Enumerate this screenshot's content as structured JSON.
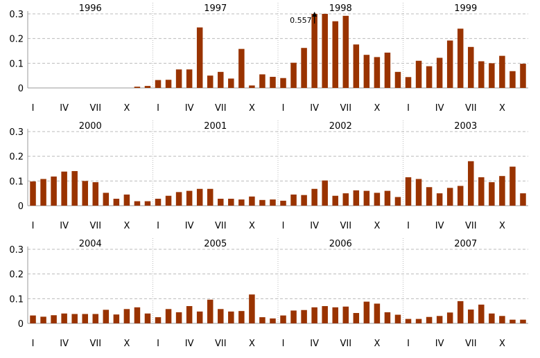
{
  "chart_data": {
    "type": "bar",
    "title": "",
    "xlabel": "",
    "ylabel": "",
    "ylim": [
      0,
      0.3
    ],
    "y_ticks": [
      "0",
      "0.1",
      "0.2",
      "0.3"
    ],
    "month_tick_labels": [
      "I",
      "IV",
      "VII",
      "X"
    ],
    "grid": "horizontal dashed at y ticks; vertical dotted between years",
    "bar_color": "#993300",
    "annotation": {
      "year": "1998",
      "month": 4,
      "text": "0.557",
      "value": 0.557
    },
    "rows": [
      {
        "years": [
          {
            "label": "1996",
            "values": [
              0,
              0,
              0,
              0,
              0,
              0,
              0,
              0,
              0,
              0,
              0.005,
              0.008
            ]
          },
          {
            "label": "1997",
            "values": [
              0.032,
              0.033,
              0.075,
              0.075,
              0.245,
              0.05,
              0.065,
              0.038,
              0.158,
              0.01,
              0.055,
              0.045
            ]
          },
          {
            "label": "1998",
            "values": [
              0.04,
              0.102,
              0.162,
              0.557,
              0.308,
              0.27,
              0.292,
              0.176,
              0.134,
              0.125,
              0.143,
              0.065
            ]
          },
          {
            "label": "1999",
            "values": [
              0.044,
              0.11,
              0.088,
              0.122,
              0.192,
              0.24,
              0.166,
              0.108,
              0.1,
              0.13,
              0.068,
              0.098
            ]
          }
        ]
      },
      {
        "years": [
          {
            "label": "2000",
            "values": [
              0.098,
              0.108,
              0.118,
              0.138,
              0.14,
              0.1,
              0.095,
              0.052,
              0.028,
              0.045,
              0.018,
              0.018
            ]
          },
          {
            "label": "2001",
            "values": [
              0.028,
              0.04,
              0.055,
              0.06,
              0.068,
              0.068,
              0.028,
              0.028,
              0.025,
              0.037,
              0.023,
              0.025
            ]
          },
          {
            "label": "2002",
            "values": [
              0.02,
              0.045,
              0.043,
              0.068,
              0.102,
              0.04,
              0.05,
              0.062,
              0.06,
              0.052,
              0.06,
              0.035
            ]
          },
          {
            "label": "2003",
            "values": [
              0.115,
              0.108,
              0.075,
              0.05,
              0.072,
              0.08,
              0.18,
              0.115,
              0.095,
              0.12,
              0.158,
              0.05
            ]
          }
        ]
      },
      {
        "years": [
          {
            "label": "2004",
            "values": [
              0.032,
              0.027,
              0.033,
              0.04,
              0.038,
              0.038,
              0.038,
              0.055,
              0.036,
              0.058,
              0.065,
              0.04
            ]
          },
          {
            "label": "2005",
            "values": [
              0.025,
              0.058,
              0.045,
              0.07,
              0.048,
              0.096,
              0.058,
              0.048,
              0.05,
              0.117,
              0.025,
              0.02
            ]
          },
          {
            "label": "2006",
            "values": [
              0.032,
              0.052,
              0.054,
              0.065,
              0.07,
              0.065,
              0.068,
              0.042,
              0.088,
              0.08,
              0.045,
              0.035
            ]
          },
          {
            "label": "2007",
            "values": [
              0.018,
              0.018,
              0.026,
              0.03,
              0.044,
              0.09,
              0.056,
              0.076,
              0.04,
              0.03,
              0.015,
              0.015
            ]
          }
        ]
      }
    ]
  }
}
